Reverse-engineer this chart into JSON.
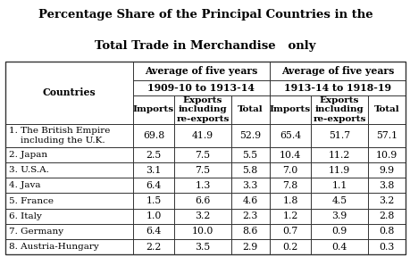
{
  "title_line1": "Percentage Share of the Principal Countries in the",
  "title_line2": "Total Trade in Merchandise   only",
  "rows": [
    [
      "1. The British Empire\n    including the U.K.",
      "69.8",
      "41.9",
      "52.9",
      "65.4",
      "51.7",
      "57.1"
    ],
    [
      "2. Japan",
      "2.5",
      "7.5",
      "5.5",
      "10.4",
      "11.2",
      "10.9"
    ],
    [
      "3. U.S.A.",
      "3.1",
      "7.5",
      "5.8",
      "7.0",
      "11.9",
      "9.9"
    ],
    [
      "4. Java",
      "6.4",
      "1.3",
      "3.3",
      "7.8",
      "1.1",
      "3.8"
    ],
    [
      "5. France",
      "1.5",
      "6.6",
      "4.6",
      "1.8",
      "4.5",
      "3.2"
    ],
    [
      "6. Italy",
      "1.0",
      "3.2",
      "2.3",
      "1.2",
      "3.9",
      "2.8"
    ],
    [
      "7. Germany",
      "6.4",
      "10.0",
      "8.6",
      "0.7",
      "0.9",
      "0.8"
    ],
    [
      "8. Austria-Hungary",
      "2.2",
      "3.5",
      "2.9",
      "0.2",
      "0.4",
      "0.3"
    ]
  ],
  "col_widths_rel": [
    2.6,
    0.85,
    1.15,
    0.78,
    0.85,
    1.15,
    0.78
  ],
  "background_color": "#ffffff",
  "grid_color": "#333333",
  "text_color": "#000000",
  "title_fontsize": 9.5,
  "header_fontsize": 7.8,
  "cell_fontsize": 7.8,
  "title_font": "DejaVu Serif",
  "body_font": "DejaVu Serif"
}
